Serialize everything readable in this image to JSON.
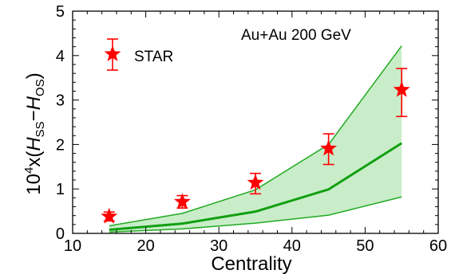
{
  "chart_data": {
    "type": "scatter",
    "xlabel": "Centrality",
    "ylabel": "10⁴x(H",
    "ylabel_parts": {
      "prefix": "10",
      "exponent": "4",
      "times": "x(",
      "h1": "H",
      "sub1": "SS",
      "minus": "−",
      "h2": "H",
      "sub2": "OS",
      "close": ")"
    },
    "annotation": "Au+Au  200 GeV",
    "legend": {
      "label": "STAR",
      "placement": "top-left"
    },
    "xlim": [
      10,
      60
    ],
    "ylim": [
      0,
      5
    ],
    "xticks": [
      10,
      20,
      30,
      40,
      50,
      60
    ],
    "yticks": [
      0,
      1,
      2,
      3,
      4,
      5
    ],
    "x_tick_labels": [
      "10",
      "20",
      "30",
      "40",
      "50",
      "60"
    ],
    "y_tick_labels": [
      "0",
      "1",
      "2",
      "3",
      "4",
      "5"
    ],
    "star_points": {
      "name": "STAR",
      "x": [
        15,
        25,
        35,
        45,
        55
      ],
      "y": [
        0.38,
        0.71,
        1.14,
        1.91,
        3.23
      ],
      "yerr_low": [
        0.1,
        0.14,
        0.25,
        0.36,
        0.6
      ],
      "yerr_high": [
        0.1,
        0.14,
        0.21,
        0.33,
        0.48
      ]
    },
    "band": {
      "x": [
        15,
        25,
        35,
        45,
        55
      ],
      "upper": [
        0.17,
        0.45,
        0.98,
        2.0,
        4.22
      ],
      "central": [
        0.08,
        0.22,
        0.49,
        0.99,
        2.03
      ],
      "lower": [
        0.03,
        0.1,
        0.23,
        0.41,
        0.82
      ]
    },
    "colors": {
      "star": "#ff0000",
      "band_fill": "#c9edc9",
      "band_line": "#22aa22",
      "central_line": "#11a011",
      "axis": "#000000"
    }
  }
}
